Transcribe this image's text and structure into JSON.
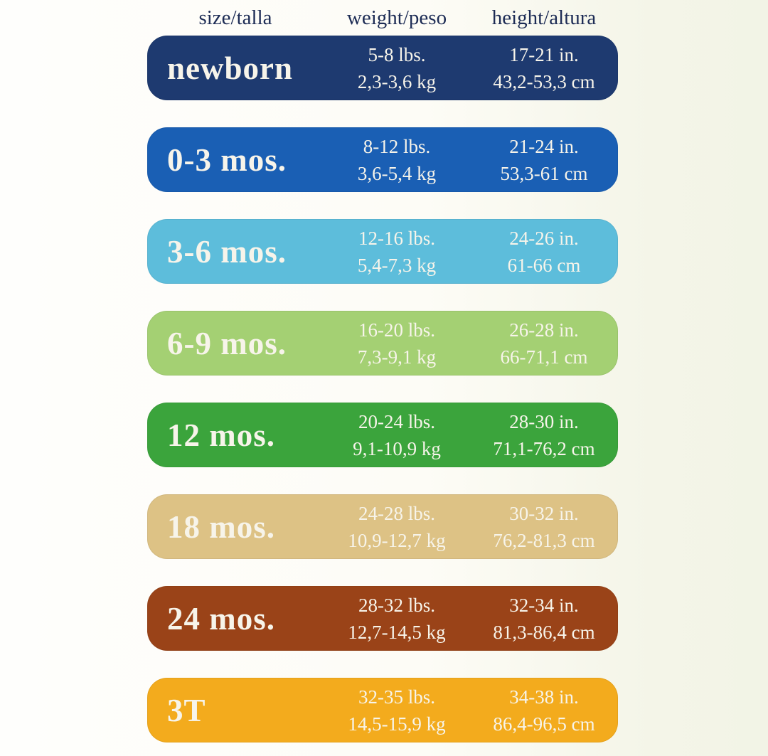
{
  "header": {
    "columns": [
      "size/talla",
      "weight/peso",
      "height/altura"
    ],
    "text_color": "#1d2c55"
  },
  "row_text_color": "#f7f4ea",
  "chart_data": {
    "type": "table",
    "title": "Baby clothing size chart (size / weight / height)",
    "columns": [
      "size/talla",
      "weight/peso",
      "height/altura"
    ],
    "rows": [
      {
        "size": "newborn",
        "weight_lbs": "5-8 lbs.",
        "weight_kg": "2,3-3,6 kg",
        "height_in": "17-21 in.",
        "height_cm": "43,2-53,3 cm",
        "color": "#1e3a70"
      },
      {
        "size": "0-3 mos.",
        "weight_lbs": "8-12 lbs.",
        "weight_kg": "3,6-5,4 kg",
        "height_in": "21-24 in.",
        "height_cm": "53,3-61 cm",
        "color": "#1a5fb4"
      },
      {
        "size": "3-6 mos.",
        "weight_lbs": "12-16 lbs.",
        "weight_kg": "5,4-7,3 kg",
        "height_in": "24-26 in.",
        "height_cm": "61-66 cm",
        "color": "#5dbddb"
      },
      {
        "size": "6-9 mos.",
        "weight_lbs": "16-20 lbs.",
        "weight_kg": "7,3-9,1 kg",
        "height_in": "26-28 in.",
        "height_cm": "66-71,1 cm",
        "color": "#a4d073"
      },
      {
        "size": "12 mos.",
        "weight_lbs": "20-24 lbs.",
        "weight_kg": "9,1-10,9 kg",
        "height_in": "28-30 in.",
        "height_cm": "71,1-76,2 cm",
        "color": "#3ba43c"
      },
      {
        "size": "18 mos.",
        "weight_lbs": "24-28 lbs.",
        "weight_kg": "10,9-12,7 kg",
        "height_in": "30-32 in.",
        "height_cm": "76,2-81,3 cm",
        "color": "#ddc285"
      },
      {
        "size": "24 mos.",
        "weight_lbs": "28-32 lbs.",
        "weight_kg": "12,7-14,5 kg",
        "height_in": "32-34 in.",
        "height_cm": "81,3-86,4 cm",
        "color": "#9a4318"
      },
      {
        "size": "3T",
        "weight_lbs": "32-35 lbs.",
        "weight_kg": "14,5-15,9 kg",
        "height_in": "34-38 in.",
        "height_cm": "86,4-96,5 cm",
        "color": "#f3ab1d"
      }
    ]
  }
}
